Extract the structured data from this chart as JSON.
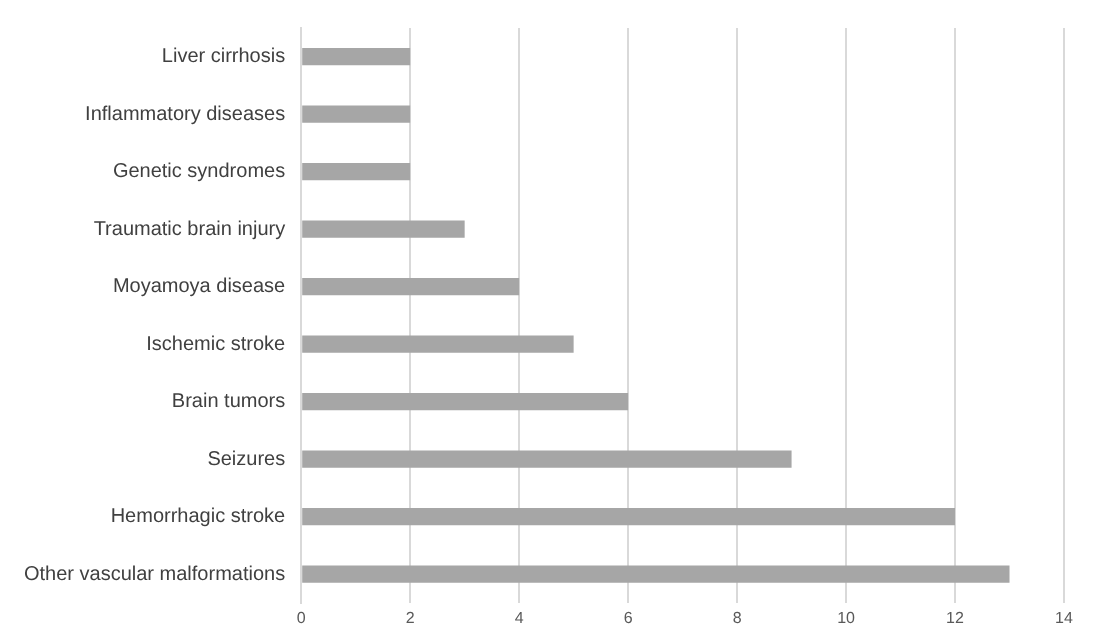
{
  "chart_data": {
    "type": "bar",
    "orientation": "horizontal",
    "categories": [
      "Liver cirrhosis",
      "Inflammatory diseases",
      "Genetic syndromes",
      "Traumatic brain injury",
      "Moyamoya disease",
      "Ischemic stroke",
      "Brain tumors",
      "Seizures",
      "Hemorrhagic stroke",
      "Other vascular malformations"
    ],
    "values": [
      2,
      2,
      2,
      3,
      4,
      5,
      6,
      9,
      12,
      13
    ],
    "color": "#a6a6a6",
    "xlim": [
      0,
      14
    ],
    "xticks": [
      0,
      2,
      4,
      6,
      8,
      10,
      12,
      14
    ],
    "grid": "x",
    "legend": false
  }
}
